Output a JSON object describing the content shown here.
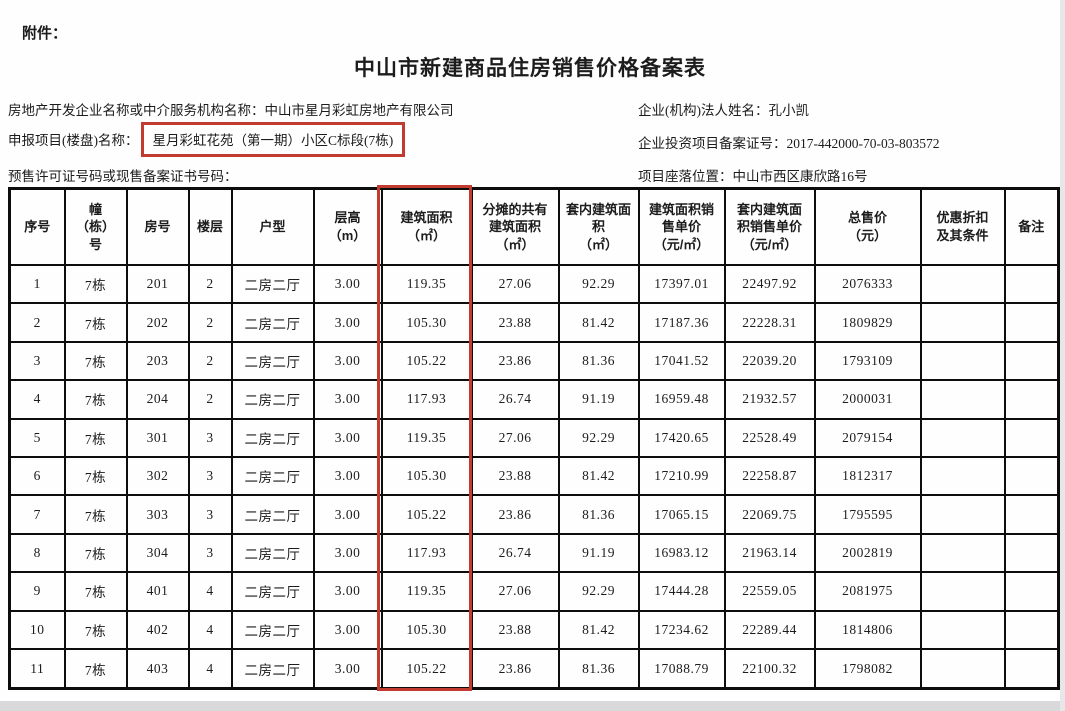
{
  "colors": {
    "highlight": "#c23b30",
    "table_border": "#0d0d0d"
  },
  "page": {
    "attachment_label": "附件：",
    "title": "中山市新建商品住房销售价格备案表"
  },
  "meta": {
    "left": [
      {
        "label": "房地产开发企业名称或中介服务机构名称：",
        "value": "中山市星月彩虹房地产有限公司"
      },
      {
        "label": "申报项目(楼盘)名称：",
        "value": "星月彩虹花苑（第一期）小区C标段(7栋)"
      },
      {
        "label": "预售许可证号码或现售备案证书号码：",
        "value": ""
      }
    ],
    "right": [
      {
        "label": "企业(机构)法人姓名：",
        "value": "孔小凯"
      },
      {
        "label": "企业投资项目备案证号：",
        "value": "2017-442000-70-03-803572"
      },
      {
        "label": "项目座落位置：",
        "value": "中山市西区康欣路16号"
      }
    ]
  },
  "table": {
    "headers": [
      "序号",
      "幢\n（栋）\n号",
      "房号",
      "楼层",
      "户型",
      "层高\n（m）",
      "建筑面积\n（㎡）",
      "分摊的共有\n建筑面积\n（㎡）",
      "套内建筑面\n积\n（㎡）",
      "建筑面积销\n售单价\n（元/㎡）",
      "套内建筑面\n积销售单价\n（元/㎡）",
      "总售价\n（元）",
      "优惠折扣\n及其条件",
      "备注"
    ],
    "rows": [
      [
        "1",
        "7栋",
        "201",
        "2",
        "二房二厅",
        "3.00",
        "119.35",
        "27.06",
        "92.29",
        "17397.01",
        "22497.92",
        "2076333",
        "",
        ""
      ],
      [
        "2",
        "7栋",
        "202",
        "2",
        "二房二厅",
        "3.00",
        "105.30",
        "23.88",
        "81.42",
        "17187.36",
        "22228.31",
        "1809829",
        "",
        ""
      ],
      [
        "3",
        "7栋",
        "203",
        "2",
        "二房二厅",
        "3.00",
        "105.22",
        "23.86",
        "81.36",
        "17041.52",
        "22039.20",
        "1793109",
        "",
        ""
      ],
      [
        "4",
        "7栋",
        "204",
        "2",
        "二房二厅",
        "3.00",
        "117.93",
        "26.74",
        "91.19",
        "16959.48",
        "21932.57",
        "2000031",
        "",
        ""
      ],
      [
        "5",
        "7栋",
        "301",
        "3",
        "二房二厅",
        "3.00",
        "119.35",
        "27.06",
        "92.29",
        "17420.65",
        "22528.49",
        "2079154",
        "",
        ""
      ],
      [
        "6",
        "7栋",
        "302",
        "3",
        "二房二厅",
        "3.00",
        "105.30",
        "23.88",
        "81.42",
        "17210.99",
        "22258.87",
        "1812317",
        "",
        ""
      ],
      [
        "7",
        "7栋",
        "303",
        "3",
        "二房二厅",
        "3.00",
        "105.22",
        "23.86",
        "81.36",
        "17065.15",
        "22069.75",
        "1795595",
        "",
        ""
      ],
      [
        "8",
        "7栋",
        "304",
        "3",
        "二房二厅",
        "3.00",
        "117.93",
        "26.74",
        "91.19",
        "16983.12",
        "21963.14",
        "2002819",
        "",
        ""
      ],
      [
        "9",
        "7栋",
        "401",
        "4",
        "二房二厅",
        "3.00",
        "119.35",
        "27.06",
        "92.29",
        "17444.28",
        "22559.05",
        "2081975",
        "",
        ""
      ],
      [
        "10",
        "7栋",
        "402",
        "4",
        "二房二厅",
        "3.00",
        "105.30",
        "23.88",
        "81.42",
        "17234.62",
        "22289.44",
        "1814806",
        "",
        ""
      ],
      [
        "11",
        "7栋",
        "403",
        "4",
        "二房二厅",
        "3.00",
        "105.22",
        "23.86",
        "81.36",
        "17088.79",
        "22100.32",
        "1798082",
        "",
        ""
      ]
    ]
  }
}
